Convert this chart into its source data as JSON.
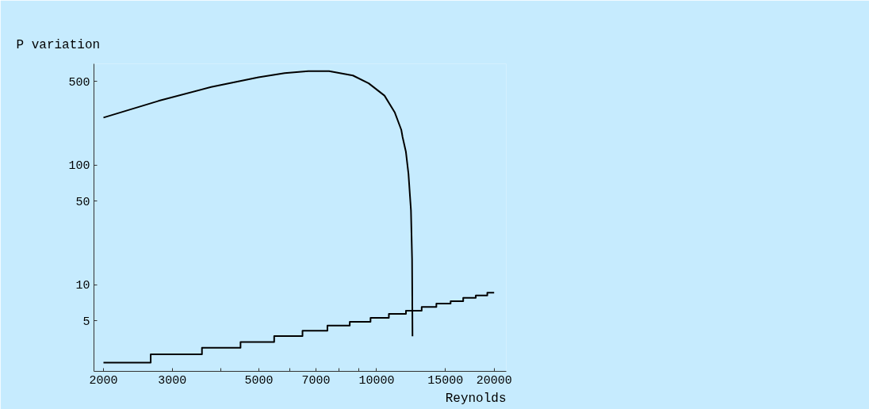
{
  "chart_data": {
    "type": "line",
    "ylabel": "P variation",
    "xlabel": "Reynolds",
    "log": "xy",
    "grid": false,
    "xlim": [
      1891,
      21480
    ],
    "ylim": [
      1.9,
      700
    ],
    "xticks": [
      2000,
      3000,
      {
        "value": 4000,
        "label": null
      },
      5000,
      {
        "value": 6000,
        "label": null
      },
      7000,
      {
        "value": 8000,
        "label": null
      },
      {
        "value": 9000,
        "label": null
      },
      10000,
      15000,
      20000
    ],
    "yticks": [
      5,
      10,
      50,
      100,
      500
    ],
    "series": [
      {
        "color": "#000000",
        "x": [
          2000,
          2766,
          3772,
          4988,
          5818,
          6690,
          7560,
          8700,
          9548,
          10480,
          11140,
          11570,
          11660,
          11890,
          12070,
          12250,
          12330,
          12360
        ],
        "values": [
          249,
          343,
          448,
          541,
          586,
          608,
          608,
          559,
          481,
          380,
          274,
          197,
          171,
          129,
          84.7,
          41.9,
          16.4,
          3.73
        ]
      },
      {
        "type": "step",
        "color": "#000000",
        "x": [
          2000,
          2642,
          3574,
          4486,
          5470,
          6464,
          7486,
          8540,
          9652,
          10754,
          11892,
          13048,
          14228,
          15474,
          16666,
          17948,
          19210,
          20000
        ],
        "values": [
          2.25,
          2.64,
          2.99,
          3.34,
          3.74,
          4.14,
          4.57,
          4.93,
          5.31,
          5.74,
          6.1,
          6.55,
          7.0,
          7.3,
          7.8,
          8.17,
          8.6,
          8.6
        ]
      }
    ]
  }
}
